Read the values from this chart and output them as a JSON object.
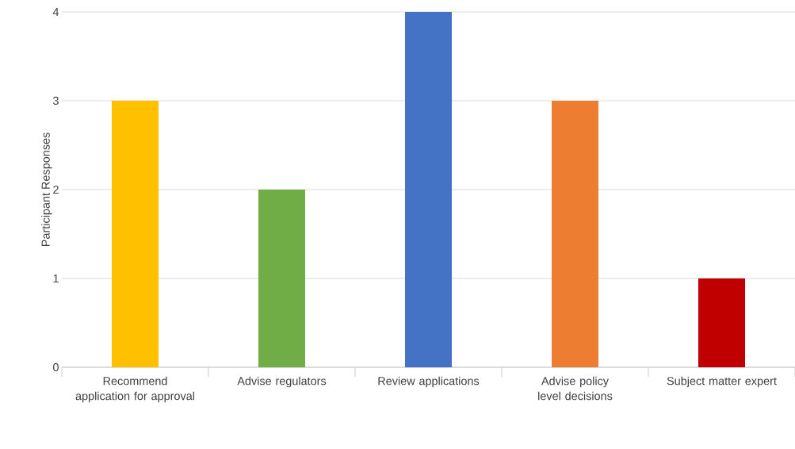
{
  "chart_data": {
    "type": "bar",
    "ylabel": "Participant Responses",
    "categories": [
      "Recommend application for approval",
      "Advise regulators",
      "Review applications",
      "Advise policy level decisions",
      "Subject matter expert"
    ],
    "values": [
      3,
      2,
      4,
      3,
      1
    ],
    "colors": [
      "#ffc000",
      "#70ad47",
      "#4472c4",
      "#ed7d31",
      "#c00000"
    ],
    "ylim": [
      0,
      4
    ],
    "yticks": [
      0,
      1,
      2,
      3,
      4
    ],
    "grid": "y"
  }
}
